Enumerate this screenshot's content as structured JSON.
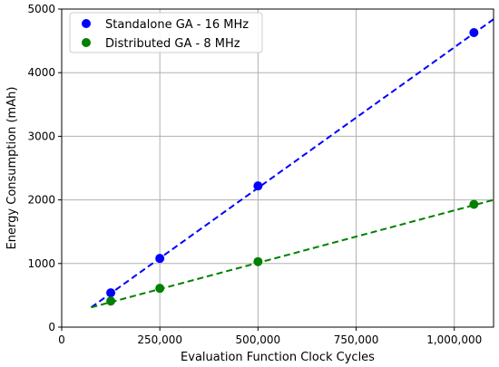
{
  "chart_data": {
    "type": "scatter",
    "xlabel": "Evaluation Function Clock Cycles",
    "ylabel": "Energy Consumption (mAh)",
    "xlim": [
      0,
      1100000
    ],
    "ylim": [
      0,
      5000
    ],
    "x_ticks": [
      0,
      250000,
      500000,
      750000,
      1000000
    ],
    "x_tick_labels": [
      "0",
      "250,000",
      "500,000",
      "750,000",
      "1,000,000"
    ],
    "y_ticks": [
      0,
      1000,
      2000,
      3000,
      4000,
      5000
    ],
    "y_tick_labels": [
      "0",
      "1000",
      "2000",
      "3000",
      "4000",
      "5000"
    ],
    "grid": true,
    "legend_position": "top-left",
    "series": [
      {
        "name": "Standalone GA - 16 MHz",
        "color": "#0000ff",
        "marker": "circle",
        "x": [
          125000,
          250000,
          500000,
          1050000
        ],
        "y": [
          540,
          1080,
          2220,
          4630
        ],
        "fit_line": {
          "style": "dashed",
          "x": [
            75000,
            1100000
          ],
          "y": [
            310,
            4840
          ]
        }
      },
      {
        "name": "Distributed GA - 8 MHz",
        "color": "#008000",
        "marker": "circle",
        "x": [
          125000,
          250000,
          500000,
          1050000
        ],
        "y": [
          410,
          610,
          1030,
          1930
        ],
        "fit_line": {
          "style": "dashed",
          "x": [
            75000,
            1100000
          ],
          "y": [
            310,
            2000
          ]
        }
      }
    ]
  }
}
